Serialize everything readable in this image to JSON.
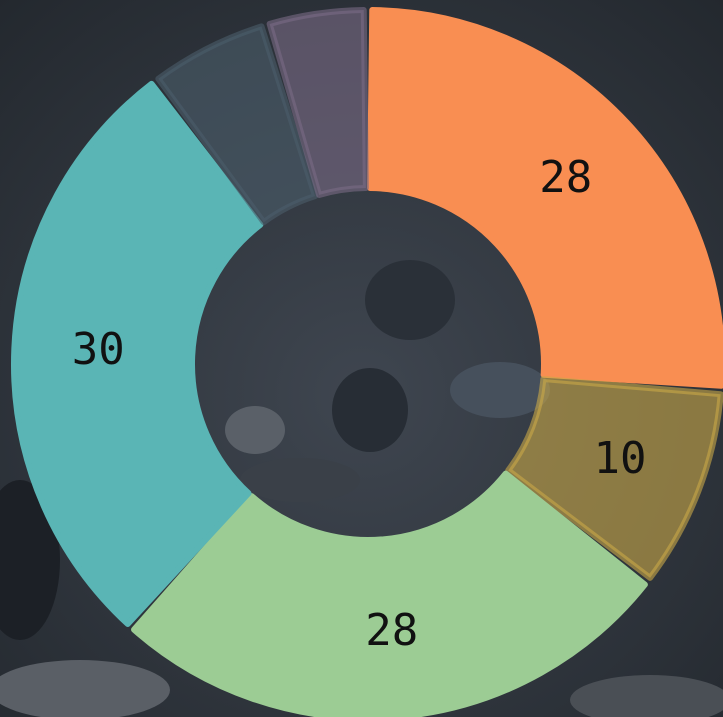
{
  "chart_data": {
    "type": "donut",
    "values": [
      28,
      10,
      28,
      30,
      6,
      5
    ],
    "colors": [
      "#f98e52",
      "#c9a94899",
      "#9ccc94",
      "#5ab5b5",
      "#4b5d6a99",
      "#7a6a8699"
    ]
  }
}
